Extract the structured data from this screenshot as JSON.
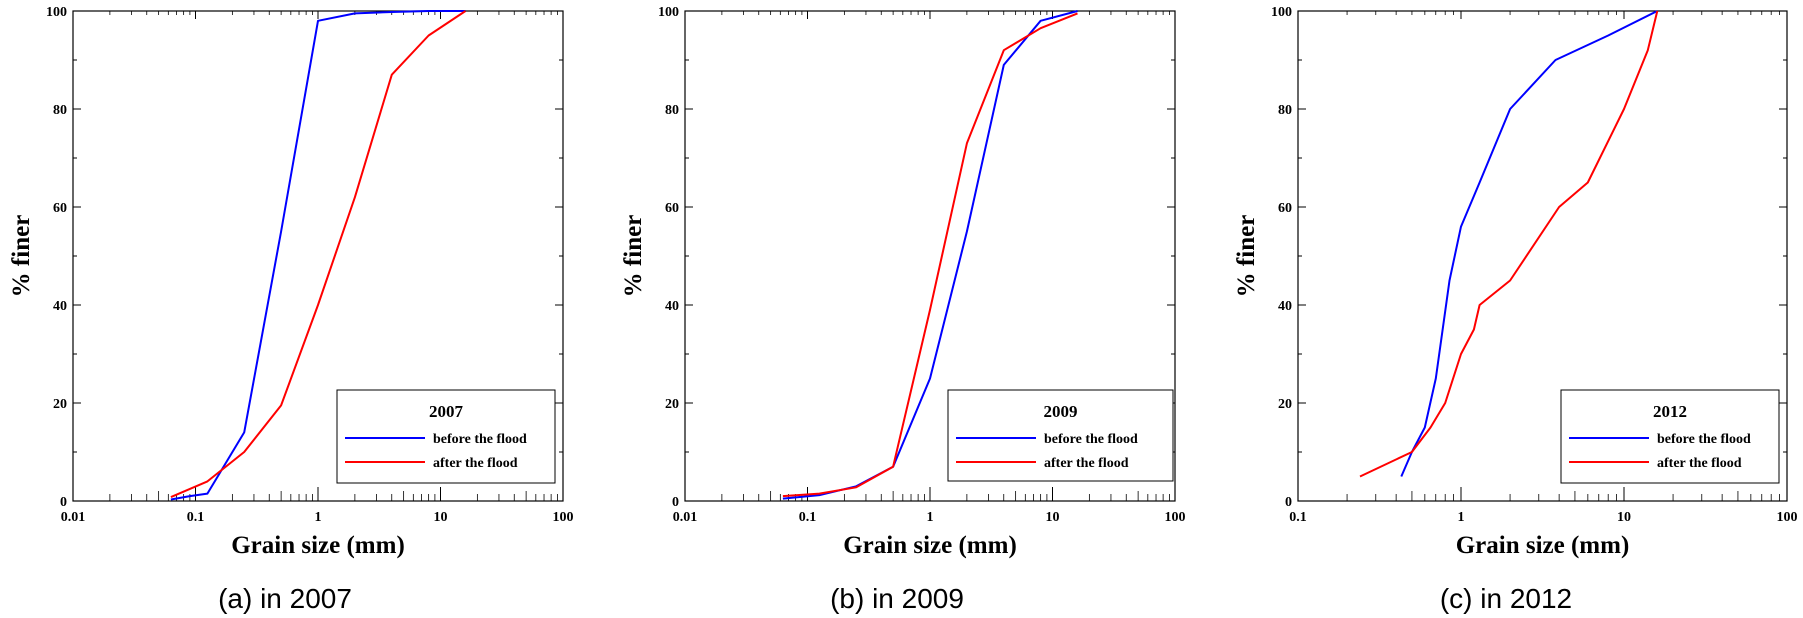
{
  "colors": {
    "before": "#0000ff",
    "after": "#ff0000",
    "axis": "#000000"
  },
  "chart_data": [
    {
      "type": "line",
      "caption": "(a)  in  2007",
      "legend_title": "2007",
      "xlabel": "Grain size (mm)",
      "ylabel": "% finer",
      "xscale": "log",
      "xlim": [
        0.01,
        100
      ],
      "ylim": [
        0,
        100
      ],
      "x_ticks": [
        0.01,
        0.1,
        1,
        10,
        100
      ],
      "x_tick_labels": [
        "0.01",
        "0.1",
        "1",
        "10",
        "100"
      ],
      "y_ticks": [
        0,
        20,
        40,
        60,
        80,
        100
      ],
      "y_tick_labels": [
        "0",
        "20",
        "40",
        "60",
        "80",
        "100"
      ],
      "legend_position": "bottom-right",
      "series": [
        {
          "name": "before the flood",
          "color_key": "before",
          "x": [
            0.063,
            0.09,
            0.125,
            0.25,
            0.5,
            1,
            2,
            4,
            8,
            16
          ],
          "y": [
            0.3,
            1.0,
            1.5,
            14,
            55,
            98,
            99.5,
            99.8,
            100,
            100
          ]
        },
        {
          "name": "after the flood",
          "color_key": "after",
          "x": [
            0.063,
            0.125,
            0.25,
            0.5,
            1,
            2,
            4,
            8,
            16
          ],
          "y": [
            0.8,
            4,
            10,
            19.5,
            40,
            62,
            87,
            95,
            100
          ]
        }
      ]
    },
    {
      "type": "line",
      "caption": "(b)  in  2009",
      "legend_title": "2009",
      "xlabel": "Grain size (mm)",
      "ylabel": "% finer",
      "xscale": "log",
      "xlim": [
        0.01,
        100
      ],
      "ylim": [
        0,
        100
      ],
      "x_ticks": [
        0.01,
        0.1,
        1,
        10,
        100
      ],
      "x_tick_labels": [
        "0.01",
        "0.1",
        "1",
        "10",
        "100"
      ],
      "y_ticks": [
        0,
        20,
        40,
        60,
        80,
        100
      ],
      "y_tick_labels": [
        "0",
        "20",
        "40",
        "60",
        "80",
        "100"
      ],
      "legend_position": "bottom-right",
      "series": [
        {
          "name": "before the flood",
          "color_key": "before",
          "x": [
            0.063,
            0.125,
            0.25,
            0.5,
            1,
            2,
            4,
            8,
            16
          ],
          "y": [
            0.5,
            1.2,
            3.0,
            7.0,
            25,
            55,
            89,
            98,
            100
          ]
        },
        {
          "name": "after the flood",
          "color_key": "after",
          "x": [
            0.063,
            0.125,
            0.25,
            0.5,
            1,
            2,
            4,
            8,
            16
          ],
          "y": [
            1.0,
            1.5,
            2.8,
            7.0,
            39,
            73,
            92,
            96.5,
            99.5
          ]
        }
      ]
    },
    {
      "type": "line",
      "caption": "(c)  in  2012",
      "legend_title": "2012",
      "xlabel": "Grain size (mm)",
      "ylabel": "% finer",
      "xscale": "log",
      "xlim": [
        0.1,
        100
      ],
      "ylim": [
        0,
        100
      ],
      "x_ticks": [
        0.1,
        1,
        10,
        100
      ],
      "x_tick_labels": [
        "0.1",
        "1",
        "10",
        "100"
      ],
      "y_ticks": [
        0,
        20,
        40,
        60,
        80,
        100
      ],
      "y_tick_labels": [
        "0",
        "20",
        "40",
        "60",
        "80",
        "100"
      ],
      "legend_position": "bottom-right",
      "series": [
        {
          "name": "before the flood",
          "color_key": "before",
          "x": [
            0.43,
            0.5,
            0.6,
            0.7,
            0.85,
            1.0,
            1.3,
            2.0,
            3.8,
            8,
            16
          ],
          "y": [
            5,
            10,
            15,
            25,
            45,
            56,
            65,
            80,
            90,
            95,
            100
          ]
        },
        {
          "name": "after the flood",
          "color_key": "after",
          "x": [
            0.24,
            0.5,
            0.65,
            0.8,
            1.0,
            1.2,
            1.3,
            2.0,
            4.0,
            6.0,
            10,
            14,
            16
          ],
          "y": [
            5,
            10,
            15,
            20,
            30,
            35,
            40,
            45,
            60,
            65,
            80,
            92,
            100
          ]
        }
      ]
    }
  ]
}
